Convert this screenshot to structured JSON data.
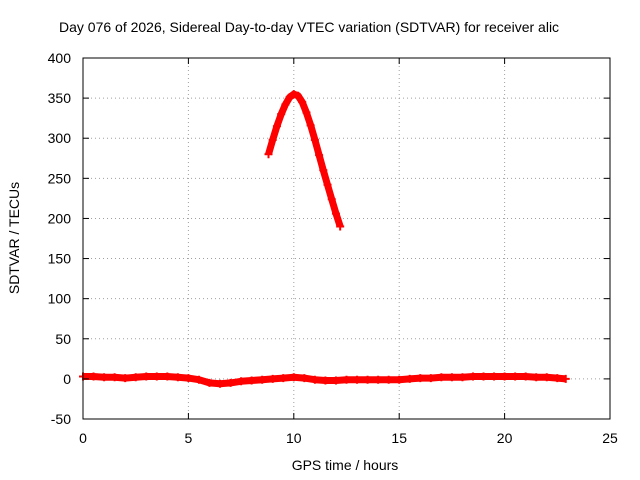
{
  "chart_data": {
    "type": "scatter",
    "title": "Day 076 of 2026, Sidereal Day-to-day VTEC variation (SDTVAR) for receiver alic",
    "xlabel": "GPS time / hours",
    "ylabel": "SDTVAR / TECUs",
    "xlim": [
      0,
      25
    ],
    "ylim": [
      -50,
      400
    ],
    "x_ticks": [
      "0",
      "5",
      "10",
      "15",
      "20",
      "25"
    ],
    "y_ticks": [
      "-50",
      "0",
      "50",
      "100",
      "150",
      "200",
      "250",
      "300",
      "350",
      "400"
    ],
    "grid": true,
    "grid_style": "dotted",
    "marker_color": "#ff0000",
    "marker": "plus",
    "series": [
      {
        "x": [
          0.0,
          0.5,
          1.0,
          1.5,
          2.0,
          2.5,
          3.0,
          3.5,
          4.0,
          4.5,
          5.0,
          5.5,
          6.0,
          6.5,
          7.0,
          7.5,
          8.0,
          8.5,
          9.0,
          9.5,
          10.0,
          10.5,
          11.0,
          11.5,
          12.0,
          12.5,
          13.0,
          13.5,
          14.0,
          14.5,
          15.0,
          15.5,
          16.0,
          16.5,
          17.0,
          17.5,
          18.0,
          18.5,
          19.0,
          19.5,
          20.0,
          20.5,
          21.0,
          21.5,
          22.0,
          22.5,
          22.9
        ],
        "y": [
          3,
          3,
          2,
          2,
          1,
          2,
          3,
          3,
          3,
          2,
          1,
          -1,
          -5,
          -6,
          -5,
          -3,
          -2,
          -1,
          0,
          1,
          2,
          1,
          -1,
          -2,
          -2,
          -1,
          -1,
          -1,
          -1,
          -1,
          -1,
          0,
          1,
          1,
          2,
          2,
          2,
          3,
          3,
          3,
          3,
          3,
          3,
          2,
          2,
          1,
          0
        ]
      },
      {
        "x": [
          8.8,
          9.0,
          9.2,
          9.4,
          9.6,
          9.8,
          10.0,
          10.2,
          10.4,
          10.6,
          10.8,
          11.0,
          11.2,
          11.4,
          11.6,
          11.8,
          12.0,
          12.2
        ],
        "y": [
          280,
          298,
          315,
          330,
          342,
          351,
          355,
          353,
          345,
          332,
          316,
          298,
          279,
          260,
          242,
          224,
          206,
          190
        ]
      }
    ]
  }
}
